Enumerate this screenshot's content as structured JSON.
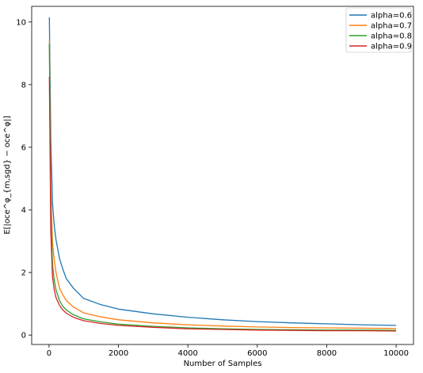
{
  "chart_data": {
    "type": "line",
    "title": "",
    "xlabel": "Number of Samples",
    "ylabel": "E[|oce^φ_{m,sgd} − oce^φ|]",
    "xlim": [
      -500,
      10500
    ],
    "ylim": [
      -0.3,
      10.5
    ],
    "xticks": [
      0,
      2000,
      4000,
      6000,
      8000,
      10000
    ],
    "xtick_labels": [
      "0",
      "2000",
      "4000",
      "6000",
      "8000",
      "10000"
    ],
    "yticks": [
      0,
      2,
      4,
      6,
      8,
      10
    ],
    "ytick_labels": [
      "0",
      "2",
      "4",
      "6",
      "8",
      "10"
    ],
    "grid": false,
    "legend_position": "top-right",
    "series": [
      {
        "name": "alpha=0.6",
        "color": "#1f77b4",
        "x": [
          10,
          50,
          100,
          150,
          200,
          300,
          400,
          500,
          700,
          1000,
          1500,
          2000,
          3000,
          4000,
          5000,
          6000,
          7000,
          8000,
          9000,
          10000
        ],
        "y": [
          10.15,
          6.3,
          4.2,
          3.5,
          3.05,
          2.45,
          2.1,
          1.8,
          1.5,
          1.17,
          0.97,
          0.83,
          0.68,
          0.57,
          0.49,
          0.43,
          0.39,
          0.36,
          0.33,
          0.31
        ]
      },
      {
        "name": "alpha=0.7",
        "color": "#ff7f0e",
        "x": [
          10,
          50,
          100,
          150,
          200,
          300,
          400,
          500,
          700,
          1000,
          1500,
          2000,
          3000,
          4000,
          5000,
          6000,
          7000,
          8000,
          9000,
          10000
        ],
        "y": [
          9.45,
          4.7,
          2.95,
          2.4,
          2.0,
          1.5,
          1.28,
          1.1,
          0.9,
          0.71,
          0.58,
          0.49,
          0.39,
          0.33,
          0.29,
          0.26,
          0.24,
          0.23,
          0.22,
          0.21
        ]
      },
      {
        "name": "alpha=0.8",
        "color": "#2ca02c",
        "x": [
          10,
          50,
          100,
          150,
          200,
          300,
          400,
          500,
          700,
          1000,
          1500,
          2000,
          3000,
          4000,
          5000,
          6000,
          7000,
          8000,
          9000,
          10000
        ],
        "y": [
          9.3,
          3.9,
          2.25,
          1.75,
          1.45,
          1.1,
          0.92,
          0.8,
          0.65,
          0.52,
          0.42,
          0.35,
          0.28,
          0.23,
          0.2,
          0.18,
          0.17,
          0.16,
          0.16,
          0.15
        ]
      },
      {
        "name": "alpha=0.9",
        "color": "#d62728",
        "x": [
          10,
          50,
          100,
          150,
          200,
          300,
          400,
          500,
          700,
          1000,
          1500,
          2000,
          3000,
          4000,
          5000,
          6000,
          7000,
          8000,
          9000,
          10000
        ],
        "y": [
          8.25,
          3.3,
          1.85,
          1.45,
          1.2,
          0.95,
          0.8,
          0.7,
          0.57,
          0.46,
          0.37,
          0.31,
          0.25,
          0.2,
          0.18,
          0.16,
          0.15,
          0.14,
          0.14,
          0.13
        ]
      }
    ]
  }
}
